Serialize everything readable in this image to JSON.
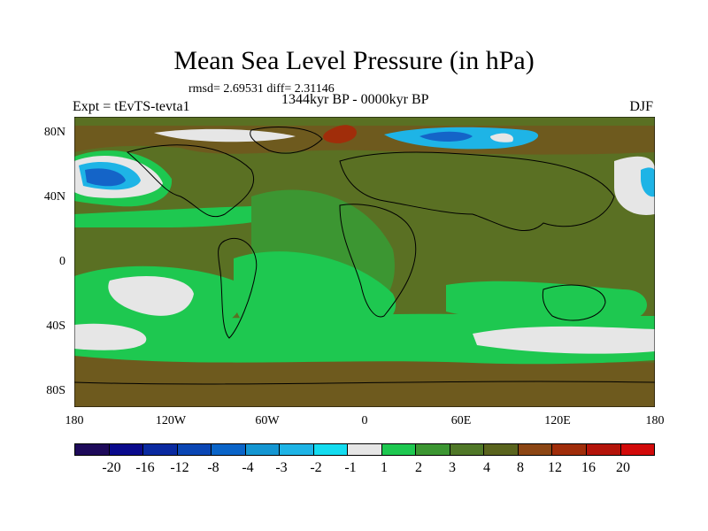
{
  "title": "Mean Sea Level Pressure (in hPa)",
  "stats": "rmsd= 2.69531 diff= 2.31146",
  "period": "1344kyr BP - 0000kyr BP",
  "experiment": "Expt = tEvTS-tevta1",
  "season": "DJF",
  "lat_labels": [
    "80N",
    "40N",
    "0",
    "40S",
    "80S"
  ],
  "lon_labels": [
    "180",
    "120W",
    "60W",
    "0",
    "60E",
    "120E",
    "180"
  ],
  "colorbar": {
    "labels": [
      "-20",
      "-16",
      "-12",
      "-8",
      "-4",
      "-3",
      "-2",
      "-1",
      "1",
      "2",
      "3",
      "4",
      "8",
      "12",
      "16",
      "20"
    ],
    "colors": [
      "#1e0a5a",
      "#0a0a8c",
      "#0a2aa0",
      "#0a46b4",
      "#0a64c8",
      "#1496d2",
      "#1eb4e6",
      "#14dcf0",
      "#e6e6e6",
      "#1ec850",
      "#3c9632",
      "#507828",
      "#5a641e",
      "#8c4614",
      "#a02d0a",
      "#b4140a",
      "#d20a0a"
    ]
  },
  "palette": {
    "land_bg": "#5a7023",
    "ocean_brown": "#6e5a1e",
    "green": "#1ec850",
    "mid_green": "#3c9632",
    "white": "#e6e6e6",
    "light_blue": "#1eb4e6",
    "blue": "#1464c8",
    "red": "#a02d0a"
  }
}
